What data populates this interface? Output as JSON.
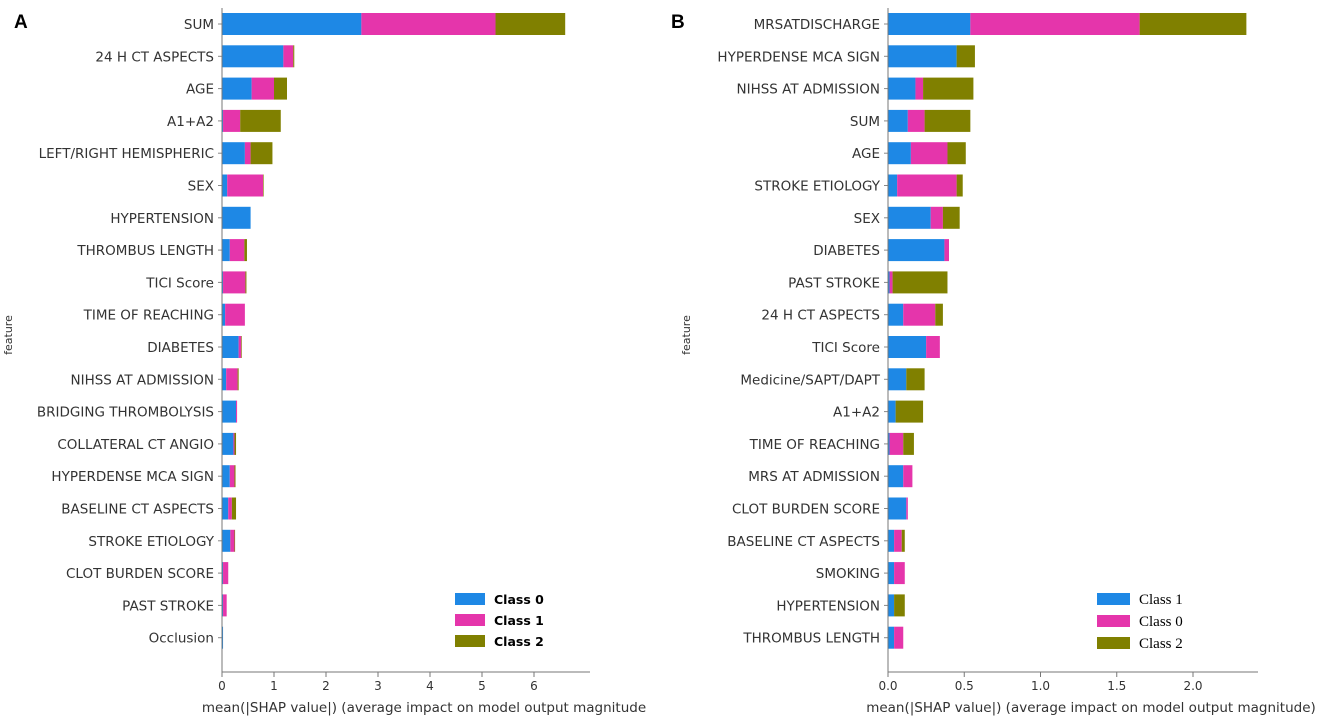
{
  "chart_data": [
    {
      "type": "bar",
      "orientation": "horizontal",
      "stacked": true,
      "panel_label": "A",
      "title": "",
      "xlabel": "mean(|SHAP value|) (average impact on model output magnitude",
      "ylabel": "feature",
      "xlim": [
        0,
        7.0
      ],
      "xticks": [
        0,
        1,
        2,
        3,
        4,
        5,
        6
      ],
      "xtick_labels": [
        "0",
        "1",
        "2",
        "3",
        "4",
        "5",
        "6"
      ],
      "grid": false,
      "legend_position": "bottom-right",
      "categories": [
        "SUM",
        "24 H CT ASPECTS",
        "AGE",
        "A1+A2",
        "LEFT/RIGHT HEMISPHERIC",
        "SEX",
        "HYPERTENSION",
        "THROMBUS LENGTH",
        "TICI Score",
        "TIME OF REACHING",
        "DIABETES",
        "NIHSS AT ADMISSION",
        "BRIDGING THROMBOLYSIS",
        "COLLATERAL CT ANGIO",
        "HYPERDENSE MCA SIGN",
        "BASELINE CT ASPECTS",
        "STROKE ETIOLOGY",
        "CLOT BURDEN SCORE",
        "PAST STROKE",
        "Occlusion"
      ],
      "series": [
        {
          "name": "Class 0",
          "color": "#1e88e5",
          "values": [
            2.68,
            1.18,
            0.57,
            0.02,
            0.44,
            0.1,
            0.55,
            0.15,
            0.02,
            0.06,
            0.32,
            0.08,
            0.27,
            0.22,
            0.15,
            0.12,
            0.16,
            0.02,
            0.02,
            0.02
          ]
        },
        {
          "name": "Class 1",
          "color": "#e535ab",
          "values": [
            2.58,
            0.19,
            0.43,
            0.33,
            0.11,
            0.69,
            0.0,
            0.28,
            0.43,
            0.38,
            0.05,
            0.22,
            0.02,
            0.02,
            0.09,
            0.07,
            0.08,
            0.1,
            0.07,
            0.0
          ]
        },
        {
          "name": "Class 2",
          "color": "#808000",
          "values": [
            1.34,
            0.02,
            0.25,
            0.78,
            0.42,
            0.01,
            0.0,
            0.05,
            0.02,
            0.0,
            0.01,
            0.02,
            0.0,
            0.03,
            0.02,
            0.08,
            0.01,
            0.0,
            0.0,
            0.0
          ]
        }
      ]
    },
    {
      "type": "bar",
      "orientation": "horizontal",
      "stacked": true,
      "panel_label": "B",
      "title": "",
      "xlabel": "mean(|SHAP value|) (average impact on model output magnitude)",
      "ylabel": "feature",
      "xlim": [
        0,
        2.4
      ],
      "xticks": [
        0,
        0.5,
        1.0,
        1.5,
        2.0
      ],
      "xtick_labels": [
        "0.0",
        "0.5",
        "1.0",
        "1.5",
        "2.0"
      ],
      "grid": false,
      "legend_position": "bottom-right",
      "categories": [
        "MRSATDISCHARGE",
        "HYPERDENSE MCA SIGN",
        "NIHSS AT ADMISSION",
        "SUM",
        "AGE",
        "STROKE ETIOLOGY",
        "SEX",
        "DIABETES",
        "PAST STROKE",
        "24 H CT ASPECTS",
        "TICI Score",
        "Medicine/SAPT/DAPT",
        "A1+A2",
        "TIME OF REACHING",
        "MRS AT ADMISSION",
        "CLOT BURDEN SCORE",
        "BASELINE CT ASPECTS",
        "SMOKING",
        "HYPERTENSION",
        "THROMBUS LENGTH"
      ],
      "series": [
        {
          "name": "Class 1",
          "color": "#1e88e5",
          "values": [
            0.54,
            0.45,
            0.18,
            0.13,
            0.15,
            0.06,
            0.28,
            0.37,
            0.01,
            0.1,
            0.25,
            0.12,
            0.05,
            0.01,
            0.1,
            0.12,
            0.04,
            0.04,
            0.04,
            0.04
          ]
        },
        {
          "name": "Class 0",
          "color": "#e535ab",
          "values": [
            1.11,
            0.0,
            0.05,
            0.11,
            0.24,
            0.39,
            0.08,
            0.03,
            0.02,
            0.21,
            0.09,
            0.0,
            0.0,
            0.09,
            0.06,
            0.01,
            0.05,
            0.07,
            0.0,
            0.06
          ]
        },
        {
          "name": "Class 2",
          "color": "#808000",
          "values": [
            0.7,
            0.12,
            0.33,
            0.3,
            0.12,
            0.04,
            0.11,
            0.0,
            0.36,
            0.05,
            0.0,
            0.12,
            0.18,
            0.07,
            0.0,
            0.0,
            0.02,
            0.0,
            0.07,
            0.0
          ]
        }
      ]
    }
  ]
}
